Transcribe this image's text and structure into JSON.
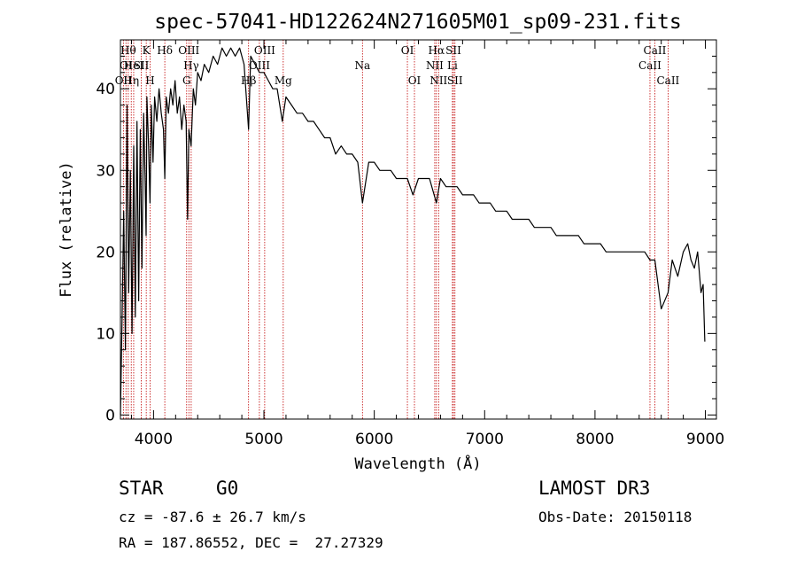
{
  "chart_data": {
    "type": "line",
    "title": "spec-57041-HD122624N271605M01_sp09-231.fits",
    "xlabel": "Wavelength (Å)",
    "ylabel": "Flux (relative)",
    "xlim": [
      3700,
      9100
    ],
    "ylim": [
      -0.5,
      46
    ],
    "x_ticks": [
      4000,
      5000,
      6000,
      7000,
      8000,
      9000
    ],
    "x_tick_labels": [
      "4000",
      "5000",
      "6000",
      "7000",
      "8000",
      "9000"
    ],
    "y_ticks": [
      0,
      10,
      20,
      30,
      40
    ],
    "y_tick_labels": [
      "0",
      "10",
      "20",
      "30",
      "40"
    ],
    "series": [
      {
        "name": "flux",
        "x": [
          3700,
          3715,
          3730,
          3745,
          3760,
          3775,
          3790,
          3805,
          3820,
          3835,
          3850,
          3865,
          3880,
          3895,
          3910,
          3925,
          3933,
          3940,
          3955,
          3968,
          3980,
          3995,
          4010,
          4030,
          4050,
          4070,
          4090,
          4102,
          4115,
          4135,
          4155,
          4175,
          4195,
          4215,
          4235,
          4255,
          4275,
          4295,
          4308,
          4320,
          4340,
          4360,
          4380,
          4400,
          4430,
          4460,
          4500,
          4540,
          4580,
          4620,
          4660,
          4700,
          4740,
          4780,
          4820,
          4861,
          4880,
          4920,
          4960,
          5000,
          5040,
          5080,
          5120,
          5167,
          5200,
          5250,
          5300,
          5350,
          5400,
          5450,
          5500,
          5550,
          5600,
          5650,
          5700,
          5750,
          5800,
          5850,
          5893,
          5950,
          6000,
          6050,
          6100,
          6150,
          6200,
          6250,
          6300,
          6350,
          6400,
          6450,
          6500,
          6563,
          6600,
          6650,
          6700,
          6750,
          6800,
          6850,
          6900,
          6950,
          7000,
          7050,
          7100,
          7150,
          7200,
          7250,
          7300,
          7350,
          7400,
          7450,
          7500,
          7550,
          7600,
          7650,
          7700,
          7750,
          7800,
          7850,
          7900,
          7950,
          8000,
          8050,
          8100,
          8150,
          8200,
          8250,
          8300,
          8350,
          8400,
          8450,
          8498,
          8542,
          8600,
          8662,
          8700,
          8750,
          8800,
          8840,
          8870,
          8900,
          8930,
          8960,
          8980,
          8995
        ],
        "values": [
          0,
          12,
          25,
          8,
          38,
          15,
          30,
          10,
          33,
          12,
          36,
          14,
          35,
          18,
          37,
          28,
          22,
          39,
          33,
          26,
          38,
          31,
          39,
          36,
          40,
          37,
          35,
          29,
          39,
          37,
          40,
          38,
          41,
          37,
          39,
          35,
          38,
          36,
          24,
          35,
          33,
          40,
          38,
          42,
          41,
          43,
          42,
          44,
          43,
          45,
          44,
          45,
          44,
          45,
          43,
          35,
          44,
          43,
          42,
          42,
          41,
          40,
          40,
          36,
          39,
          38,
          37,
          37,
          36,
          36,
          35,
          34,
          34,
          32,
          33,
          32,
          32,
          31,
          26,
          31,
          31,
          30,
          30,
          30,
          29,
          29,
          29,
          27,
          29,
          29,
          29,
          26,
          29,
          28,
          28,
          28,
          27,
          27,
          27,
          26,
          26,
          26,
          25,
          25,
          25,
          24,
          24,
          24,
          24,
          23,
          23,
          23,
          23,
          22,
          22,
          22,
          22,
          22,
          21,
          21,
          21,
          21,
          20,
          20,
          20,
          20,
          20,
          20,
          20,
          20,
          19,
          19,
          13,
          15,
          19,
          17,
          20,
          21,
          19,
          18,
          20,
          15,
          16,
          9
        ]
      }
    ],
    "line_markers": [
      {
        "x": 3727,
        "label": "OII",
        "row": 3
      },
      {
        "x": 3750,
        "label": "OI",
        "row": 2
      },
      {
        "x": 3771,
        "label": "Hθ",
        "row": 1
      },
      {
        "x": 3798,
        "label": "Hη",
        "row": 3
      },
      {
        "x": 3820,
        "label": "HeI",
        "row": 2
      },
      {
        "x": 3889,
        "label": "SII",
        "row": 2
      },
      {
        "x": 3934,
        "label": "K",
        "row": 1
      },
      {
        "x": 3969,
        "label": "H",
        "row": 3
      },
      {
        "x": 4102,
        "label": "Hδ",
        "row": 1
      },
      {
        "x": 4300,
        "label": "G",
        "row": 3
      },
      {
        "x": 4320,
        "label": "OIII",
        "row": 1
      },
      {
        "x": 4341,
        "label": "Hγ",
        "row": 2
      },
      {
        "x": 4861,
        "label": "Hβ",
        "row": 3
      },
      {
        "x": 4959,
        "label": "OIII",
        "row": 2
      },
      {
        "x": 5007,
        "label": "OIII",
        "row": 1
      },
      {
        "x": 5175,
        "label": "Mg",
        "row": 3
      },
      {
        "x": 5893,
        "label": "Na",
        "row": 2
      },
      {
        "x": 6300,
        "label": "OI",
        "row": 1
      },
      {
        "x": 6364,
        "label": "OI",
        "row": 3
      },
      {
        "x": 6548,
        "label": "NII",
        "row": 2
      },
      {
        "x": 6563,
        "label": "Hα",
        "row": 1
      },
      {
        "x": 6583,
        "label": "NII",
        "row": 3
      },
      {
        "x": 6708,
        "label": "Li",
        "row": 2
      },
      {
        "x": 6717,
        "label": "SII",
        "row": 1
      },
      {
        "x": 6731,
        "label": "SII",
        "row": 3
      },
      {
        "x": 8498,
        "label": "CaII",
        "row": 2
      },
      {
        "x": 8542,
        "label": "CaII",
        "row": 1
      },
      {
        "x": 8662,
        "label": "CaII",
        "row": 3
      }
    ]
  },
  "info": {
    "class": "STAR",
    "subclass": "G0",
    "survey": "LAMOST DR3",
    "cz": "cz = -87.6 ± 26.7 km/s",
    "obs_date": "Obs-Date: 20150118",
    "coords": "RA = 187.86552, DEC =  27.27329"
  },
  "colors": {
    "line_marker": "#c00000",
    "spectrum": "#000000"
  }
}
